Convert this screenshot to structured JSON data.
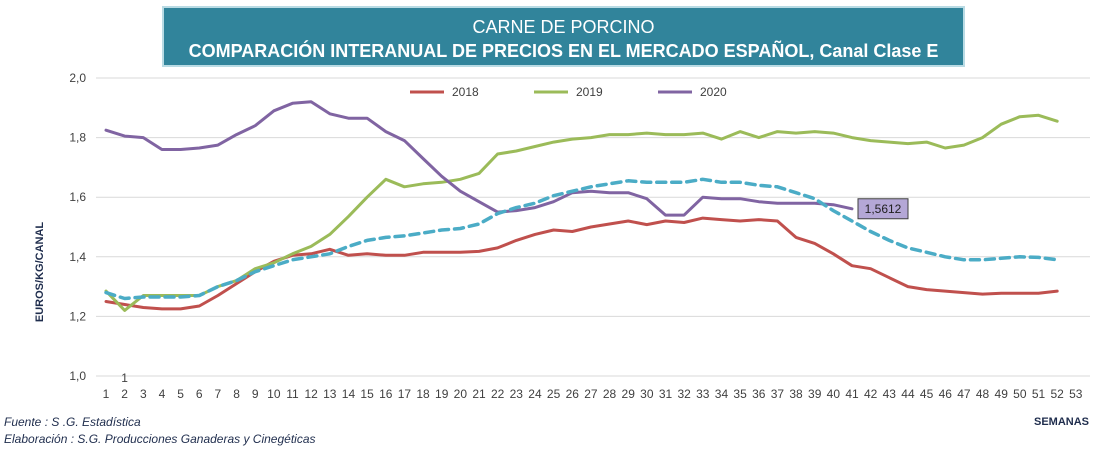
{
  "header": {
    "title_line1": "CARNE DE PORCINO",
    "title_line2": "COMPARACIÓN INTERANUAL DE PRECIOS EN EL MERCADO ESPAÑOL, Canal Clase E"
  },
  "footer": {
    "source": "Fuente :  S .G. Estadística",
    "elaboration": "Elaboración : S.G. Producciones Ganaderas y Cinegéticas"
  },
  "chart_data": {
    "type": "line",
    "title": "CARNE DE PORCINO — COMPARACIÓN INTERANUAL DE PRECIOS EN EL MERCADO ESPAÑOL, Canal Clase E",
    "ylabel": "EUROS/KG/CANAL",
    "xlabel": "SEMANAS",
    "ylim": [
      1.0,
      2.0
    ],
    "yticks": [
      "1,0",
      "1,2",
      "1,4",
      "1,6",
      "1,8",
      "2,0"
    ],
    "x": [
      1,
      2,
      3,
      4,
      5,
      6,
      7,
      8,
      9,
      10,
      11,
      12,
      13,
      14,
      15,
      16,
      17,
      18,
      19,
      20,
      21,
      22,
      23,
      24,
      25,
      26,
      27,
      28,
      29,
      30,
      31,
      32,
      33,
      34,
      35,
      36,
      37,
      38,
      39,
      40,
      41,
      42,
      43,
      44,
      45,
      46,
      47,
      48,
      49,
      50,
      51,
      52,
      53
    ],
    "grid": true,
    "legend_position": "top-center",
    "series": [
      {
        "name": "2018",
        "color": "#c0504d",
        "dashed": false,
        "values": [
          1.25,
          1.24,
          1.23,
          1.225,
          1.225,
          1.235,
          1.27,
          1.31,
          1.35,
          1.385,
          1.405,
          1.41,
          1.425,
          1.405,
          1.41,
          1.405,
          1.405,
          1.415,
          1.415,
          1.415,
          1.418,
          1.43,
          1.455,
          1.475,
          1.49,
          1.485,
          1.5,
          1.51,
          1.52,
          1.508,
          1.52,
          1.515,
          1.53,
          1.525,
          1.52,
          1.525,
          1.52,
          1.465,
          1.445,
          1.41,
          1.37,
          1.36,
          1.33,
          1.3,
          1.29,
          1.285,
          1.28,
          1.275,
          1.278,
          1.278,
          1.278,
          1.285,
          null
        ]
      },
      {
        "name": "2019",
        "color": "#9bbb59",
        "dashed": false,
        "values": [
          1.285,
          1.22,
          1.27,
          1.27,
          1.27,
          1.27,
          1.3,
          1.32,
          1.36,
          1.38,
          1.41,
          1.435,
          1.475,
          1.535,
          1.6,
          1.66,
          1.635,
          1.645,
          1.65,
          1.66,
          1.68,
          1.745,
          1.755,
          1.77,
          1.785,
          1.795,
          1.8,
          1.81,
          1.81,
          1.815,
          1.81,
          1.81,
          1.815,
          1.795,
          1.82,
          1.8,
          1.82,
          1.815,
          1.82,
          1.815,
          1.8,
          1.79,
          1.785,
          1.78,
          1.785,
          1.765,
          1.775,
          1.8,
          1.845,
          1.87,
          1.875,
          1.855,
          null
        ]
      },
      {
        "name": "2020",
        "color": "#8064a2",
        "dashed": false,
        "values": [
          1.825,
          1.805,
          1.8,
          1.76,
          1.76,
          1.765,
          1.775,
          1.81,
          1.84,
          1.89,
          1.915,
          1.92,
          1.88,
          1.865,
          1.865,
          1.82,
          1.79,
          1.73,
          1.67,
          1.62,
          1.585,
          1.55,
          1.555,
          1.565,
          1.585,
          1.615,
          1.62,
          1.615,
          1.615,
          1.595,
          1.54,
          1.54,
          1.6,
          1.595,
          1.595,
          1.585,
          1.58,
          1.58,
          1.58,
          1.575,
          1.5612,
          null,
          null,
          null,
          null,
          null,
          null,
          null,
          null,
          null,
          null,
          null,
          null
        ]
      },
      {
        "name": "",
        "color": "#4bacc6",
        "dashed": true,
        "values": [
          1.28,
          1.26,
          1.265,
          1.265,
          1.265,
          1.27,
          1.3,
          1.32,
          1.35,
          1.37,
          1.39,
          1.4,
          1.41,
          1.435,
          1.455,
          1.465,
          1.47,
          1.48,
          1.49,
          1.495,
          1.51,
          1.545,
          1.565,
          1.58,
          1.605,
          1.62,
          1.635,
          1.645,
          1.655,
          1.65,
          1.65,
          1.65,
          1.66,
          1.65,
          1.65,
          1.64,
          1.635,
          1.615,
          1.595,
          1.555,
          1.52,
          1.485,
          1.455,
          1.43,
          1.415,
          1.4,
          1.39,
          1.39,
          1.395,
          1.4,
          1.398,
          1.39,
          null
        ]
      }
    ],
    "callout": {
      "label": "1,5612",
      "x": 41,
      "y": 1.5612
    },
    "extra_annotation": {
      "label": "1",
      "x": 2
    }
  }
}
